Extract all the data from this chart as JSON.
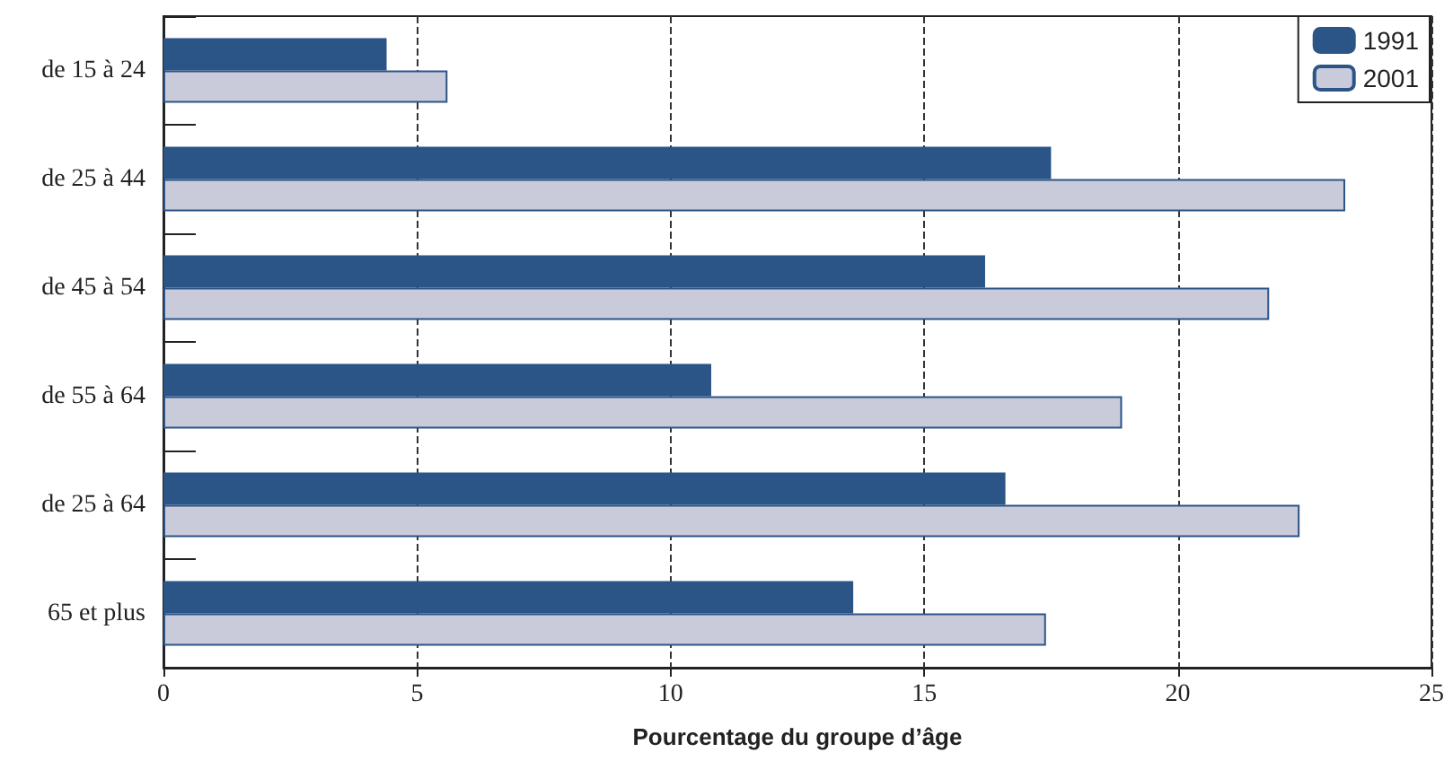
{
  "chart_data": {
    "type": "bar",
    "orientation": "horizontal",
    "xlabel": "Pourcentage du groupe d’âge",
    "categories": [
      "de 15 à 24",
      "de 25 à 44",
      "de 45 à 54",
      "de 55 à 64",
      "de 25 à 64",
      "65 et plus"
    ],
    "series": [
      {
        "name": "1991",
        "color": "#2b5587",
        "values": [
          4.4,
          17.5,
          16.2,
          10.8,
          16.6,
          13.6
        ]
      },
      {
        "name": "2001",
        "color": "#c9cbdb",
        "values": [
          5.6,
          23.3,
          21.8,
          18.9,
          22.4,
          17.4
        ]
      }
    ],
    "xlim": [
      0,
      25
    ],
    "xticks": [
      0,
      5,
      10,
      15,
      20,
      25
    ],
    "grid": "x",
    "legend": "top right"
  }
}
